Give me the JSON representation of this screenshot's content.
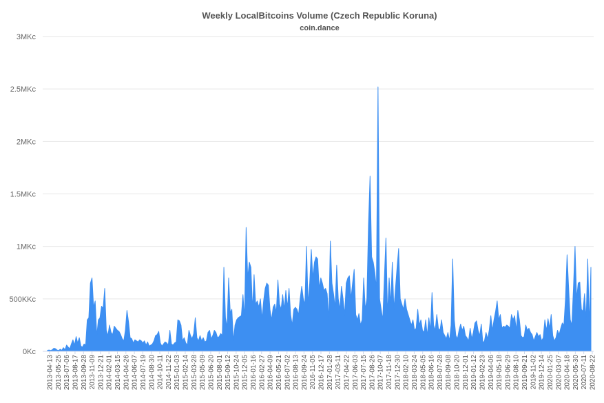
{
  "chart_data": {
    "type": "area",
    "title": "Weekly LocalBitcoins Volume (Czech Republic Koruna)",
    "subtitle": "coin.dance",
    "xlabel": "",
    "ylabel": "",
    "ylim": [
      0,
      3000000
    ],
    "grid": true,
    "legend": "none",
    "color": "#3d8ff2",
    "y_ticks": [
      {
        "value": 0,
        "label": "0Kc"
      },
      {
        "value": 500000,
        "label": "500KKc"
      },
      {
        "value": 1000000,
        "label": "1MKc"
      },
      {
        "value": 1500000,
        "label": "1.5MKc"
      },
      {
        "value": 2000000,
        "label": "2MKc"
      },
      {
        "value": 2500000,
        "label": "2.5MKc"
      },
      {
        "value": 3000000,
        "label": "3MKc"
      }
    ],
    "x_ticks": [
      "2013-04-13",
      "2013-05-25",
      "2013-07-06",
      "2013-08-17",
      "2013-09-28",
      "2013-11-09",
      "2013-12-21",
      "2014-02-01",
      "2014-03-15",
      "2014-04-26",
      "2014-06-07",
      "2014-07-19",
      "2014-08-30",
      "2014-10-11",
      "2014-11-22",
      "2015-01-03",
      "2015-02-14",
      "2015-03-28",
      "2015-05-09",
      "2015-06-20",
      "2015-08-01",
      "2015-09-12",
      "2015-10-24",
      "2015-12-05",
      "2016-01-16",
      "2016-02-27",
      "2016-04-09",
      "2016-05-21",
      "2016-07-02",
      "2016-08-13",
      "2016-09-24",
      "2016-11-05",
      "2016-12-17",
      "2017-01-28",
      "2017-03-11",
      "2017-04-22",
      "2017-06-03",
      "2017-07-15",
      "2017-08-26",
      "2017-10-07",
      "2017-11-18",
      "2017-12-30",
      "2018-02-10",
      "2018-03-24",
      "2018-05-05",
      "2018-06-16",
      "2018-07-28",
      "2018-09-08",
      "2018-10-20",
      "2018-12-01",
      "2019-01-12",
      "2019-02-23",
      "2019-04-06",
      "2019-05-18",
      "2019-06-29",
      "2019-08-10",
      "2019-09-21",
      "2019-11-02",
      "2019-12-14",
      "2020-01-25",
      "2020-03-07",
      "2020-04-18",
      "2020-05-30",
      "2020-07-11",
      "2020-08-22"
    ],
    "series": [
      {
        "values": [
          10000,
          12000,
          8000,
          15000,
          30000,
          25000,
          12000,
          8000,
          20000,
          10000,
          35000,
          15000,
          60000,
          40000,
          25000,
          70000,
          110000,
          60000,
          140000,
          80000,
          130000,
          50000,
          40000,
          70000,
          60000,
          300000,
          320000,
          650000,
          700000,
          420000,
          480000,
          150000,
          300000,
          320000,
          430000,
          410000,
          600000,
          200000,
          150000,
          250000,
          180000,
          160000,
          240000,
          220000,
          200000,
          190000,
          160000,
          120000,
          100000,
          200000,
          390000,
          280000,
          130000,
          120000,
          80000,
          110000,
          100000,
          90000,
          110000,
          100000,
          80000,
          100000,
          60000,
          90000,
          50000,
          60000,
          70000,
          100000,
          150000,
          160000,
          190000,
          80000,
          50000,
          70000,
          90000,
          80000,
          60000,
          200000,
          70000,
          60000,
          80000,
          90000,
          300000,
          290000,
          250000,
          100000,
          130000,
          80000,
          60000,
          200000,
          150000,
          120000,
          170000,
          320000,
          130000,
          100000,
          150000,
          100000,
          130000,
          90000,
          100000,
          180000,
          200000,
          120000,
          150000,
          200000,
          180000,
          130000,
          140000,
          170000,
          150000,
          800000,
          320000,
          230000,
          700000,
          370000,
          400000,
          100000,
          250000,
          300000,
          320000,
          330000,
          340000,
          540000,
          320000,
          1180000,
          700000,
          850000,
          800000,
          400000,
          730000,
          450000,
          480000,
          420000,
          500000,
          310000,
          480000,
          600000,
          650000,
          630000,
          400000,
          300000,
          420000,
          450000,
          370000,
          680000,
          450000,
          400000,
          540000,
          400000,
          580000,
          420000,
          600000,
          350000,
          250000,
          400000,
          420000,
          400000,
          350000,
          500000,
          620000,
          500000,
          450000,
          1000000,
          450000,
          650000,
          970000,
          700000,
          850000,
          900000,
          880000,
          600000,
          700000,
          650000,
          580000,
          600000,
          550000,
          300000,
          1050000,
          650000,
          550000,
          420000,
          820000,
          500000,
          400000,
          620000,
          500000,
          350000,
          650000,
          700000,
          720000,
          500000,
          650000,
          780000,
          350000,
          300000,
          360000,
          250000,
          300000,
          700000,
          400000,
          500000,
          1200000,
          1670000,
          900000,
          850000,
          750000,
          600000,
          2520000,
          500000,
          400000,
          300000,
          700000,
          1080000,
          350000,
          700000,
          450000,
          850000,
          400000,
          600000,
          800000,
          980000,
          500000,
          450000,
          400000,
          500000,
          400000,
          350000,
          300000,
          250000,
          300000,
          200000,
          220000,
          400000,
          250000,
          300000,
          200000,
          180000,
          300000,
          150000,
          320000,
          200000,
          560000,
          250000,
          200000,
          350000,
          220000,
          200000,
          300000,
          180000,
          150000,
          120000,
          180000,
          100000,
          250000,
          880000,
          300000,
          150000,
          120000,
          200000,
          260000,
          200000,
          240000,
          150000,
          130000,
          100000,
          220000,
          120000,
          180000,
          270000,
          290000,
          200000,
          150000,
          260000,
          80000,
          100000,
          180000,
          120000,
          200000,
          340000,
          200000,
          300000,
          380000,
          480000,
          300000,
          350000,
          220000,
          240000,
          230000,
          250000,
          240000,
          220000,
          350000,
          300000,
          340000,
          200000,
          390000,
          300000,
          150000,
          130000,
          140000,
          250000,
          200000,
          220000,
          180000,
          160000,
          100000,
          140000,
          180000,
          140000,
          160000,
          100000,
          130000,
          300000,
          200000,
          310000,
          220000,
          350000,
          150000,
          100000,
          130000,
          200000,
          160000,
          220000,
          270000,
          250000,
          500000,
          920000,
          600000,
          300000,
          250000,
          600000,
          1000000,
          500000,
          650000,
          660000,
          400000,
          380000,
          550000,
          300000,
          880000,
          250000,
          800000
        ]
      }
    ]
  }
}
